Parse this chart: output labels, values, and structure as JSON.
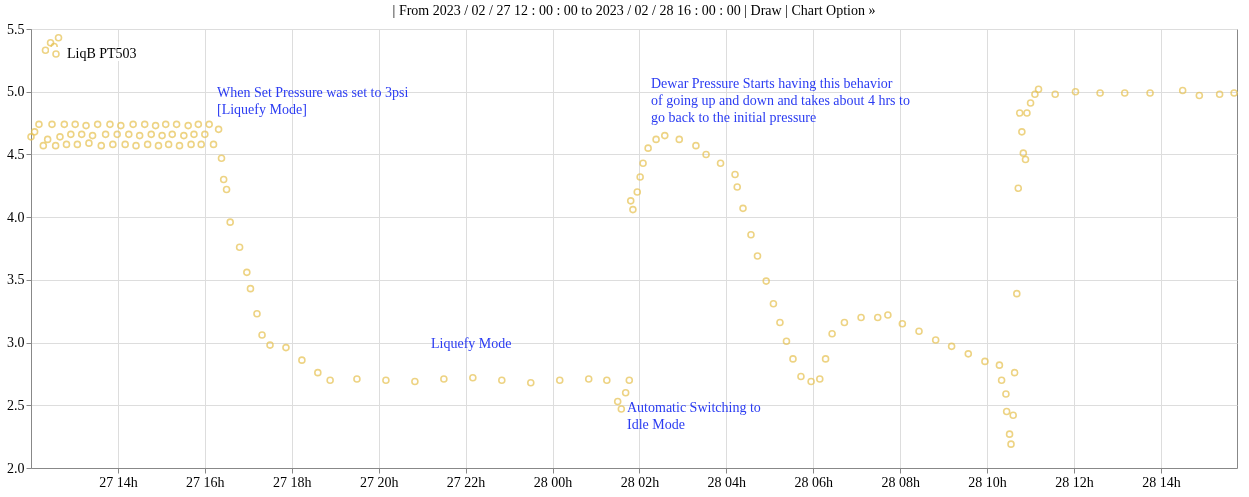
{
  "chart_data": {
    "type": "scatter",
    "annotations": [
      "| From 2023 / 02 / 27 12 : 00 : 00 to 2023 / 02 / 28 16 : 00 : 00 | Draw | Chart Option »",
      "When Set Pressure was set to 3psi\n[Liquefy Mode]",
      "Liquefy Mode",
      "Automatic Switching to\nIdle Mode",
      "Dewar Pressure Starts having this behavior\nof going up and down and takes about 4 hrs to\ngo back to the initial pressure"
    ],
    "marker": "circle",
    "series": [
      {
        "name": "LiqB PT503",
        "color": "#e6c150",
        "x": [
          "2023-02-27T12:00",
          "2023-02-27T12:05",
          "2023-02-27T12:11",
          "2023-02-27T12:17",
          "2023-02-27T12:20",
          "2023-02-27T12:23",
          "2023-02-27T12:27",
          "2023-02-27T12:29",
          "2023-02-27T12:32",
          "2023-02-27T12:34",
          "2023-02-27T12:38",
          "2023-02-27T12:40",
          "2023-02-27T12:46",
          "2023-02-27T12:49",
          "2023-02-27T12:55",
          "2023-02-27T13:01",
          "2023-02-27T13:04",
          "2023-02-27T13:10",
          "2023-02-27T13:16",
          "2023-02-27T13:20",
          "2023-02-27T13:25",
          "2023-02-27T13:32",
          "2023-02-27T13:37",
          "2023-02-27T13:43",
          "2023-02-27T13:49",
          "2023-02-27T13:53",
          "2023-02-27T13:59",
          "2023-02-27T14:04",
          "2023-02-27T14:10",
          "2023-02-27T14:15",
          "2023-02-27T14:21",
          "2023-02-27T14:25",
          "2023-02-27T14:30",
          "2023-02-27T14:37",
          "2023-02-27T14:41",
          "2023-02-27T14:46",
          "2023-02-27T14:52",
          "2023-02-27T14:56",
          "2023-02-27T15:01",
          "2023-02-27T15:06",
          "2023-02-27T15:10",
          "2023-02-27T15:15",
          "2023-02-27T15:21",
          "2023-02-27T15:25",
          "2023-02-27T15:31",
          "2023-02-27T15:37",
          "2023-02-27T15:41",
          "2023-02-27T15:45",
          "2023-02-27T15:51",
          "2023-02-27T15:55",
          "2023-02-27T16:00",
          "2023-02-27T16:06",
          "2023-02-27T16:12",
          "2023-02-27T16:19",
          "2023-02-27T16:23",
          "2023-02-27T16:26",
          "2023-02-27T16:30",
          "2023-02-27T16:35",
          "2023-02-27T16:48",
          "2023-02-27T16:58",
          "2023-02-27T17:03",
          "2023-02-27T17:12",
          "2023-02-27T17:19",
          "2023-02-27T17:30",
          "2023-02-27T17:52",
          "2023-02-27T18:14",
          "2023-02-27T18:36",
          "2023-02-27T18:53",
          "2023-02-27T19:30",
          "2023-02-27T20:10",
          "2023-02-27T20:50",
          "2023-02-27T21:30",
          "2023-02-27T22:10",
          "2023-02-27T22:50",
          "2023-02-27T23:30",
          "2023-02-28T00:10",
          "2023-02-28T00:50",
          "2023-02-28T01:15",
          "2023-02-28T01:30",
          "2023-02-28T01:35",
          "2023-02-28T01:41",
          "2023-02-28T01:46",
          "2023-02-28T01:48",
          "2023-02-28T01:51",
          "2023-02-28T01:57",
          "2023-02-28T02:01",
          "2023-02-28T02:05",
          "2023-02-28T02:12",
          "2023-02-28T02:23",
          "2023-02-28T02:35",
          "2023-02-28T02:55",
          "2023-02-28T03:18",
          "2023-02-28T03:32",
          "2023-02-28T03:52",
          "2023-02-28T04:12",
          "2023-02-28T04:15",
          "2023-02-28T04:23",
          "2023-02-28T04:34",
          "2023-02-28T04:43",
          "2023-02-28T04:55",
          "2023-02-28T05:05",
          "2023-02-28T05:14",
          "2023-02-28T05:23",
          "2023-02-28T05:32",
          "2023-02-28T05:43",
          "2023-02-28T05:57",
          "2023-02-28T06:09",
          "2023-02-28T06:17",
          "2023-02-28T06:26",
          "2023-02-28T06:43",
          "2023-02-28T07:06",
          "2023-02-28T07:29",
          "2023-02-28T07:43",
          "2023-02-28T08:03",
          "2023-02-28T08:26",
          "2023-02-28T08:49",
          "2023-02-28T09:11",
          "2023-02-28T09:34",
          "2023-02-28T09:57",
          "2023-02-28T10:17",
          "2023-02-28T10:20",
          "2023-02-28T10:26",
          "2023-02-28T10:27",
          "2023-02-28T10:31",
          "2023-02-28T10:33",
          "2023-02-28T10:36",
          "2023-02-28T10:38",
          "2023-02-28T10:41",
          "2023-02-28T10:43",
          "2023-02-28T10:45",
          "2023-02-28T10:48",
          "2023-02-28T10:50",
          "2023-02-28T10:53",
          "2023-02-28T10:55",
          "2023-02-28T11:00",
          "2023-02-28T11:06",
          "2023-02-28T11:11",
          "2023-02-28T11:34",
          "2023-02-28T12:02",
          "2023-02-28T12:36",
          "2023-02-28T13:10",
          "2023-02-28T13:45",
          "2023-02-28T14:30",
          "2023-02-28T14:53",
          "2023-02-28T15:21",
          "2023-02-28T15:41"
        ],
        "values": [
          4.64,
          4.68,
          4.74,
          4.57,
          5.33,
          4.62,
          5.39,
          4.74,
          5.36,
          4.57,
          5.43,
          4.64,
          4.74,
          4.58,
          4.66,
          4.74,
          4.58,
          4.66,
          4.73,
          4.59,
          4.65,
          4.74,
          4.57,
          4.66,
          4.74,
          4.58,
          4.66,
          4.73,
          4.58,
          4.66,
          4.74,
          4.57,
          4.65,
          4.74,
          4.58,
          4.66,
          4.73,
          4.57,
          4.65,
          4.74,
          4.58,
          4.66,
          4.74,
          4.57,
          4.65,
          4.73,
          4.58,
          4.66,
          4.74,
          4.58,
          4.66,
          4.74,
          4.58,
          4.7,
          4.47,
          4.3,
          4.22,
          3.96,
          3.76,
          3.56,
          3.43,
          3.23,
          3.06,
          2.98,
          2.96,
          2.86,
          2.76,
          2.7,
          2.71,
          2.7,
          2.69,
          2.71,
          2.72,
          2.7,
          2.68,
          2.7,
          2.71,
          2.7,
          2.53,
          2.47,
          2.6,
          2.7,
          4.13,
          4.06,
          4.2,
          4.32,
          4.43,
          4.55,
          4.62,
          4.65,
          4.62,
          4.57,
          4.5,
          4.43,
          4.34,
          4.24,
          4.07,
          3.86,
          3.69,
          3.49,
          3.31,
          3.16,
          3.01,
          2.87,
          2.73,
          2.69,
          2.71,
          2.87,
          3.07,
          3.16,
          3.2,
          3.2,
          3.22,
          3.15,
          3.09,
          3.02,
          2.97,
          2.91,
          2.85,
          2.82,
          2.7,
          2.59,
          2.45,
          2.27,
          2.19,
          2.42,
          2.76,
          3.39,
          4.23,
          4.83,
          4.68,
          4.51,
          4.46,
          4.83,
          4.91,
          4.98,
          5.02,
          4.98,
          5.0,
          4.99,
          4.99,
          4.99,
          5.01,
          4.97,
          4.98,
          4.99
        ]
      }
    ],
    "xlim": [
      "2023-02-27T12:00",
      "2023-02-28T15:45"
    ],
    "xticks": [
      {
        "value": "2023-02-27T14:00",
        "label": "27 14h"
      },
      {
        "value": "2023-02-27T16:00",
        "label": "27 16h"
      },
      {
        "value": "2023-02-27T18:00",
        "label": "27 18h"
      },
      {
        "value": "2023-02-27T20:00",
        "label": "27 20h"
      },
      {
        "value": "2023-02-27T22:00",
        "label": "27 22h"
      },
      {
        "value": "2023-02-28T00:00",
        "label": "28 00h"
      },
      {
        "value": "2023-02-28T02:00",
        "label": "28 02h"
      },
      {
        "value": "2023-02-28T04:00",
        "label": "28 04h"
      },
      {
        "value": "2023-02-28T06:00",
        "label": "28 06h"
      },
      {
        "value": "2023-02-28T08:00",
        "label": "28 08h"
      },
      {
        "value": "2023-02-28T10:00",
        "label": "28 10h"
      },
      {
        "value": "2023-02-28T12:00",
        "label": "28 12h"
      },
      {
        "value": "2023-02-28T14:00",
        "label": "28 14h"
      }
    ],
    "ylim": [
      2.0,
      5.5
    ],
    "yticks": [
      {
        "value": 2,
        "label": "2.0"
      },
      {
        "value": 2.5,
        "label": "2.5"
      },
      {
        "value": 3,
        "label": "3.0"
      },
      {
        "value": 3.5,
        "label": "3.5"
      },
      {
        "value": 4,
        "label": "4.0"
      },
      {
        "value": 4.5,
        "label": "4.5"
      },
      {
        "value": 5,
        "label": "5.0"
      },
      {
        "value": 5.5,
        "label": "5.5"
      }
    ],
    "grid": true,
    "legend": "top left"
  }
}
